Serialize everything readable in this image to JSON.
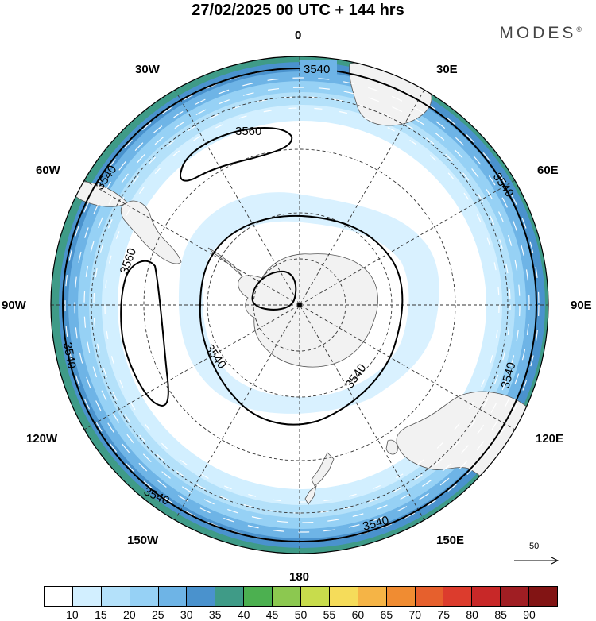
{
  "title": "27/02/2025  00 UTC  + 144 hrs",
  "brand": "MODES",
  "brand_mark": "©",
  "map": {
    "longitude_labels": {
      "lon_0": "0",
      "lon_30e": "30E",
      "lon_60e": "60E",
      "lon_90e": "90E",
      "lon_120e": "120E",
      "lon_150e": "150E",
      "lon_180": "180",
      "lon_150w": "150W",
      "lon_120w": "120W",
      "lon_90w": "90W",
      "lon_60w": "60W",
      "lon_30w": "30W"
    },
    "contour_labels": {
      "c3560_a": "3560",
      "c3560_b": "3560",
      "c3540_top": "3540",
      "c3540_ne": "3540",
      "c3540_e": "3540",
      "c3540_se": "3540",
      "c3540_s": "3540",
      "c3540_sw": "3540",
      "c3540_w": "3540",
      "c3540_nw": "3540",
      "c3540_inner_sw": "3540",
      "c3540_inner_se": "3540"
    },
    "wind_reference": "50",
    "colors": {
      "land": "#f2f2f2",
      "ring_10_15": "#d2efff",
      "ring_15_20": "#b4e1fa",
      "ring_20_25": "#96d1f5",
      "ring_25_30": "#6eb4e6",
      "ring_30_35": "#4a92cd",
      "ring_35_40": "#3f9b87"
    }
  },
  "colorbar": {
    "ticks": [
      "10",
      "15",
      "20",
      "25",
      "30",
      "35",
      "40",
      "45",
      "50",
      "55",
      "60",
      "65",
      "70",
      "75",
      "80",
      "85",
      "90"
    ],
    "colors": [
      "#ffffff",
      "#d2efff",
      "#b4e1fa",
      "#96d1f5",
      "#6eb4e6",
      "#4a92cd",
      "#3f9b87",
      "#4cb050",
      "#8cc850",
      "#c8dc4c",
      "#f5dc5a",
      "#f5b446",
      "#f08c32",
      "#e6602d",
      "#dc3c2d",
      "#c82828",
      "#a01e23",
      "#821414"
    ]
  }
}
